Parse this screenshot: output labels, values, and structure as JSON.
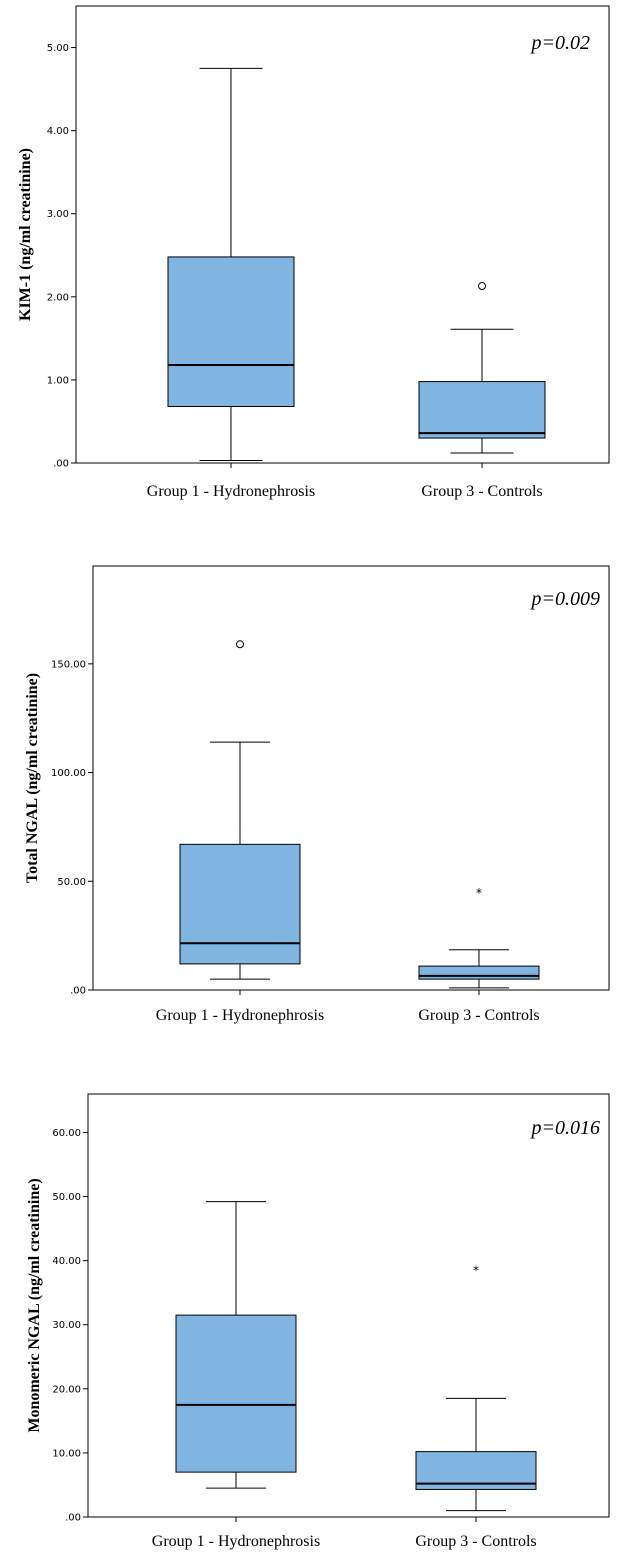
{
  "chart_data": [
    {
      "type": "boxplot",
      "ylabel": "KIM-1 (ng/ml creatinine)",
      "annotation": "p=0.02",
      "ylim": [
        0,
        5.5
      ],
      "yticks": [
        0,
        1,
        2,
        3,
        4,
        5
      ],
      "ytick_labels": [
        ".00",
        "1.00",
        "2.00",
        "3.00",
        "4.00",
        "5.00"
      ],
      "categories": [
        "Group 1 - Hydronephrosis",
        "Group 3 - Controls"
      ],
      "boxes": [
        {
          "min": 0.03,
          "q1": 0.68,
          "median": 1.18,
          "q3": 2.48,
          "max": 4.75,
          "outliers": [],
          "extremes": []
        },
        {
          "min": 0.12,
          "q1": 0.3,
          "median": 0.36,
          "q3": 0.98,
          "max": 1.61,
          "outliers": [
            2.13
          ],
          "extremes": []
        }
      ]
    },
    {
      "type": "boxplot",
      "ylabel": "Total NGAL (ng/ml creatinine)",
      "annotation": "p=0.009",
      "ylim": [
        0,
        195
      ],
      "yticks": [
        0,
        50,
        100,
        150
      ],
      "ytick_labels": [
        ".00",
        "50.00",
        "100.00",
        "150.00"
      ],
      "categories": [
        "Group 1 - Hydronephrosis",
        "Group 3 - Controls"
      ],
      "boxes": [
        {
          "min": 5,
          "q1": 12,
          "median": 21.5,
          "q3": 67,
          "max": 114,
          "outliers": [
            159
          ],
          "extremes": []
        },
        {
          "min": 1,
          "q1": 5,
          "median": 6.5,
          "q3": 11,
          "max": 18.5,
          "outliers": [],
          "extremes": [
            45.5
          ]
        }
      ]
    },
    {
      "type": "boxplot",
      "ylabel": "Monomeric NGAL (ng/ml creatinine)",
      "annotation": "p=0.016",
      "ylim": [
        0,
        66
      ],
      "yticks": [
        0,
        10,
        20,
        30,
        40,
        50,
        60
      ],
      "ytick_labels": [
        ".00",
        "10.00",
        "20.00",
        "30.00",
        "40.00",
        "50.00",
        "60.00"
      ],
      "categories": [
        "Group 1 - Hydronephrosis",
        "Group 3 - Controls"
      ],
      "boxes": [
        {
          "min": 4.5,
          "q1": 7.0,
          "median": 17.5,
          "q3": 31.5,
          "max": 49.2,
          "outliers": [],
          "extremes": []
        },
        {
          "min": 1.0,
          "q1": 4.3,
          "median": 5.2,
          "q3": 10.2,
          "max": 18.5,
          "outliers": [],
          "extremes": [
            38.8
          ]
        }
      ]
    }
  ]
}
